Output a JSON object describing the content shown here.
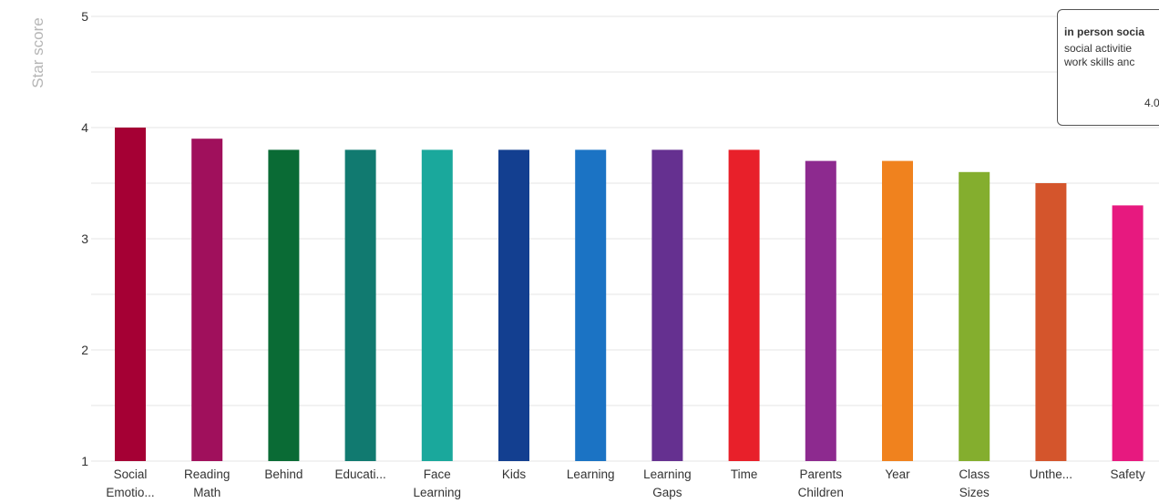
{
  "chart_data": {
    "type": "bar",
    "title": "",
    "xlabel": "",
    "ylabel": "Star score",
    "ylim": [
      1,
      5
    ],
    "yticks": [
      1,
      2,
      3,
      4,
      5
    ],
    "grid": true,
    "categories": [
      [
        "Social",
        "Emotio..."
      ],
      [
        "Reading",
        "Math"
      ],
      [
        "Behind"
      ],
      [
        "Educati..."
      ],
      [
        "Face",
        "Learning"
      ],
      [
        "Kids"
      ],
      [
        "Learning"
      ],
      [
        "Learning",
        "Gaps"
      ],
      [
        "Time"
      ],
      [
        "Parents",
        "Children"
      ],
      [
        "Year"
      ],
      [
        "Class",
        "Sizes"
      ],
      [
        "Unthe..."
      ],
      [
        "Safety"
      ]
    ],
    "values": [
      4.0,
      3.9,
      3.8,
      3.8,
      3.8,
      3.8,
      3.8,
      3.8,
      3.8,
      3.7,
      3.7,
      3.6,
      3.5,
      3.3
    ],
    "colors": [
      "#a50034",
      "#a0105c",
      "#0a6b35",
      "#117a70",
      "#1aa89c",
      "#133f90",
      "#1b73c4",
      "#653090",
      "#e8202a",
      "#8d2a8f",
      "#f0821e",
      "#84ae2e",
      "#d4552c",
      "#e7197f"
    ]
  },
  "tooltip": {
    "title": "in person socia",
    "description": "social activitie\nwork skills anc",
    "value": "4.0"
  }
}
